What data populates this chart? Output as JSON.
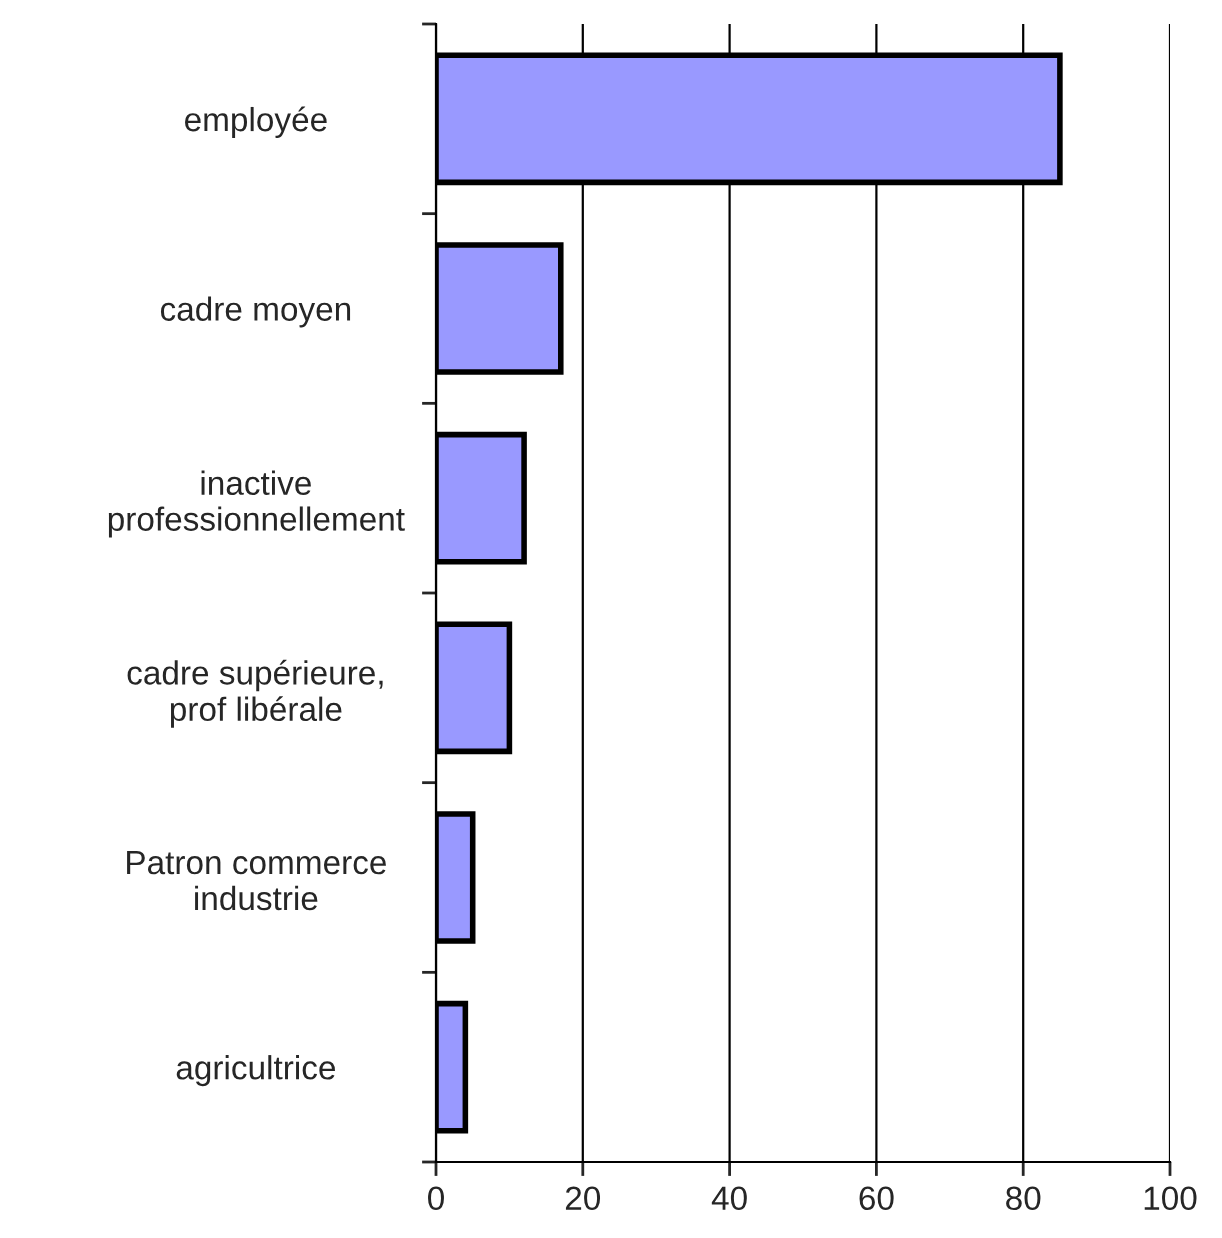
{
  "chart_data": {
    "type": "bar",
    "orientation": "horizontal",
    "categories": [
      "employée",
      "cadre moyen",
      "inactive\nprofessionnellement",
      "cadre supérieure,\nprof libérale",
      "Patron commerce\nindustrie",
      "agricultrice"
    ],
    "values": [
      85,
      17,
      12,
      10,
      5,
      4
    ],
    "color": "#9999ff",
    "xlim": [
      0,
      100
    ],
    "xticks": [
      0,
      20,
      40,
      60,
      80,
      100
    ],
    "grid": "x"
  }
}
